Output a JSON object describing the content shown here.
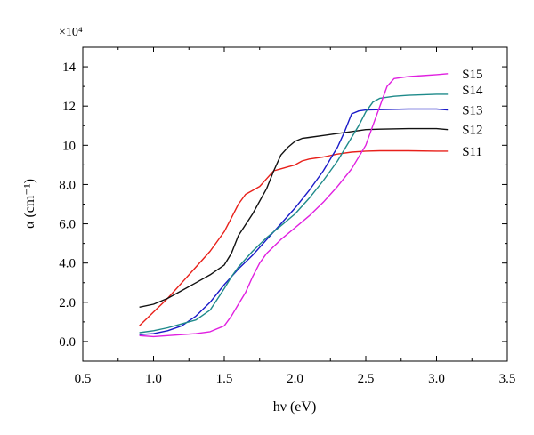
{
  "chart_data": {
    "type": "line",
    "title": "",
    "xlabel": "hν (eV)",
    "ylabel": "α (cm⁻¹)",
    "y_multiplier": "×10⁴",
    "xlim": [
      0.5,
      3.5
    ],
    "ylim": [
      -1.0,
      15.0
    ],
    "x_ticks": [
      "0.5",
      "1.0",
      "1.5",
      "2.0",
      "2.5",
      "3.0",
      "3.5"
    ],
    "y_ticks": [
      "0.0",
      "2.0",
      "4.0",
      "6.0",
      "8.0",
      "10",
      "12",
      "14"
    ],
    "grid": false,
    "legend": "inline labels at right end of each curve",
    "series": [
      {
        "name": "S11",
        "color": "#e8201a",
        "points": [
          [
            0.9,
            0.8
          ],
          [
            1.0,
            1.5
          ],
          [
            1.1,
            2.2
          ],
          [
            1.2,
            3.0
          ],
          [
            1.3,
            3.8
          ],
          [
            1.4,
            4.6
          ],
          [
            1.5,
            5.6
          ],
          [
            1.55,
            6.3
          ],
          [
            1.6,
            7.0
          ],
          [
            1.65,
            7.5
          ],
          [
            1.7,
            7.7
          ],
          [
            1.75,
            7.9
          ],
          [
            1.8,
            8.3
          ],
          [
            1.85,
            8.7
          ],
          [
            1.9,
            8.8
          ],
          [
            1.95,
            8.9
          ],
          [
            2.0,
            9.0
          ],
          [
            2.05,
            9.2
          ],
          [
            2.1,
            9.3
          ],
          [
            2.2,
            9.4
          ],
          [
            2.3,
            9.55
          ],
          [
            2.4,
            9.65
          ],
          [
            2.5,
            9.7
          ],
          [
            2.6,
            9.72
          ],
          [
            2.8,
            9.72
          ],
          [
            3.0,
            9.7
          ],
          [
            3.08,
            9.7
          ]
        ]
      },
      {
        "name": "S12",
        "color": "#111111",
        "points": [
          [
            0.9,
            1.75
          ],
          [
            1.0,
            1.9
          ],
          [
            1.1,
            2.2
          ],
          [
            1.2,
            2.6
          ],
          [
            1.3,
            3.0
          ],
          [
            1.4,
            3.4
          ],
          [
            1.5,
            3.9
          ],
          [
            1.55,
            4.5
          ],
          [
            1.6,
            5.4
          ],
          [
            1.7,
            6.5
          ],
          [
            1.8,
            7.8
          ],
          [
            1.85,
            8.7
          ],
          [
            1.9,
            9.5
          ],
          [
            1.95,
            9.9
          ],
          [
            2.0,
            10.2
          ],
          [
            2.05,
            10.35
          ],
          [
            2.1,
            10.4
          ],
          [
            2.2,
            10.5
          ],
          [
            2.3,
            10.6
          ],
          [
            2.4,
            10.7
          ],
          [
            2.5,
            10.8
          ],
          [
            2.6,
            10.82
          ],
          [
            2.8,
            10.85
          ],
          [
            3.0,
            10.85
          ],
          [
            3.08,
            10.8
          ]
        ]
      },
      {
        "name": "S13",
        "color": "#1a1ac8",
        "points": [
          [
            0.9,
            0.35
          ],
          [
            1.0,
            0.4
          ],
          [
            1.1,
            0.55
          ],
          [
            1.2,
            0.8
          ],
          [
            1.3,
            1.3
          ],
          [
            1.4,
            2.0
          ],
          [
            1.5,
            2.9
          ],
          [
            1.6,
            3.7
          ],
          [
            1.7,
            4.4
          ],
          [
            1.8,
            5.2
          ],
          [
            1.9,
            6.0
          ],
          [
            2.0,
            6.8
          ],
          [
            2.1,
            7.7
          ],
          [
            2.2,
            8.7
          ],
          [
            2.3,
            9.9
          ],
          [
            2.35,
            10.7
          ],
          [
            2.4,
            11.6
          ],
          [
            2.45,
            11.75
          ],
          [
            2.5,
            11.8
          ],
          [
            2.6,
            11.82
          ],
          [
            2.8,
            11.85
          ],
          [
            3.0,
            11.85
          ],
          [
            3.08,
            11.8
          ]
        ]
      },
      {
        "name": "S14",
        "color": "#1e8a8a",
        "points": [
          [
            0.9,
            0.45
          ],
          [
            1.0,
            0.55
          ],
          [
            1.1,
            0.7
          ],
          [
            1.2,
            0.9
          ],
          [
            1.3,
            1.1
          ],
          [
            1.4,
            1.6
          ],
          [
            1.5,
            2.7
          ],
          [
            1.55,
            3.3
          ],
          [
            1.6,
            3.8
          ],
          [
            1.7,
            4.6
          ],
          [
            1.8,
            5.3
          ],
          [
            1.9,
            5.9
          ],
          [
            2.0,
            6.5
          ],
          [
            2.1,
            7.3
          ],
          [
            2.2,
            8.2
          ],
          [
            2.3,
            9.2
          ],
          [
            2.4,
            10.4
          ],
          [
            2.45,
            11.0
          ],
          [
            2.5,
            11.7
          ],
          [
            2.55,
            12.2
          ],
          [
            2.6,
            12.4
          ],
          [
            2.7,
            12.5
          ],
          [
            2.8,
            12.55
          ],
          [
            3.0,
            12.6
          ],
          [
            3.08,
            12.6
          ]
        ]
      },
      {
        "name": "S15",
        "color": "#e020e0",
        "points": [
          [
            0.9,
            0.3
          ],
          [
            1.0,
            0.25
          ],
          [
            1.1,
            0.3
          ],
          [
            1.2,
            0.35
          ],
          [
            1.3,
            0.4
          ],
          [
            1.4,
            0.5
          ],
          [
            1.5,
            0.8
          ],
          [
            1.55,
            1.3
          ],
          [
            1.6,
            1.9
          ],
          [
            1.65,
            2.5
          ],
          [
            1.7,
            3.3
          ],
          [
            1.75,
            4.0
          ],
          [
            1.8,
            4.5
          ],
          [
            1.9,
            5.2
          ],
          [
            2.0,
            5.8
          ],
          [
            2.1,
            6.4
          ],
          [
            2.2,
            7.1
          ],
          [
            2.3,
            7.9
          ],
          [
            2.4,
            8.8
          ],
          [
            2.5,
            10.0
          ],
          [
            2.55,
            11.0
          ],
          [
            2.6,
            12.0
          ],
          [
            2.65,
            13.0
          ],
          [
            2.7,
            13.4
          ],
          [
            2.8,
            13.5
          ],
          [
            2.9,
            13.55
          ],
          [
            3.0,
            13.6
          ],
          [
            3.08,
            13.65
          ]
        ]
      }
    ]
  }
}
